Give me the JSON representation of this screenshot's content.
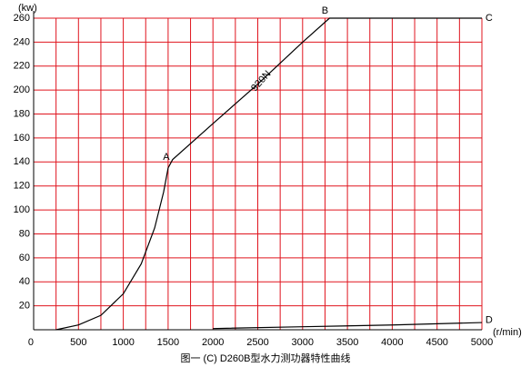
{
  "chart_data": {
    "type": "line",
    "title": "图一 (C) D260B型水力测功器特性曲线",
    "y_label": "(kw)",
    "x_label": "(r/min)",
    "xlim": [
      0,
      5000
    ],
    "ylim": [
      0,
      260
    ],
    "xticks": [
      0,
      500,
      1000,
      1500,
      2000,
      2500,
      3000,
      3500,
      4000,
      4500,
      5000
    ],
    "yticks": [
      20,
      40,
      60,
      80,
      100,
      120,
      140,
      160,
      180,
      200,
      220,
      240,
      260
    ],
    "x_grid": [
      250,
      500,
      750,
      1000,
      1250,
      1500,
      1750,
      2000,
      2250,
      2500,
      2750,
      3000,
      3250,
      3500,
      3750,
      4000,
      4250,
      4500,
      4750,
      5000
    ],
    "grid": true,
    "series": [
      {
        "name": "920N",
        "color": "#000000",
        "x": [
          250,
          500,
          750,
          1000,
          1200,
          1350,
          1450,
          1500,
          1550,
          2000,
          2500,
          3000,
          3300,
          5000
        ],
        "values": [
          0,
          4,
          12,
          30,
          55,
          85,
          115,
          135,
          142,
          172,
          205,
          240,
          260,
          260
        ]
      },
      {
        "color": "#000000",
        "x": [
          2000,
          3000,
          4000,
          5000
        ],
        "values": [
          1,
          2.5,
          4,
          6
        ]
      }
    ],
    "annotations": [
      {
        "text": "A",
        "x": 1480,
        "y": 144
      },
      {
        "text": "B",
        "x": 3250,
        "y": 266
      },
      {
        "text": "C",
        "x": 5080,
        "y": 260
      },
      {
        "text": "D",
        "x": 5080,
        "y": 8
      }
    ]
  }
}
